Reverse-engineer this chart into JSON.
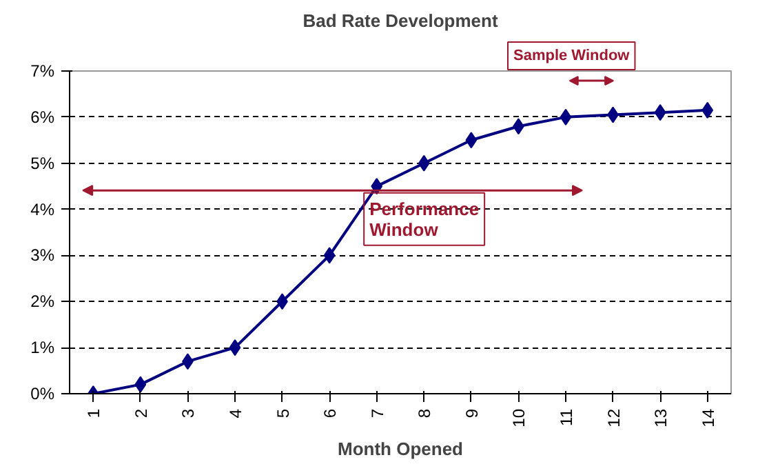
{
  "chart_data": {
    "type": "line",
    "title": "Bad Rate Development",
    "xlabel": "Month Opened",
    "categories": [
      "1",
      "2",
      "3",
      "4",
      "5",
      "6",
      "7",
      "8",
      "9",
      "10",
      "11",
      "12",
      "13",
      "14"
    ],
    "series": [
      {
        "color": "#000080",
        "values": [
          0,
          0.2,
          0.7,
          1.0,
          2.0,
          3.0,
          4.5,
          5.0,
          5.5,
          5.8,
          6.0,
          6.05,
          6.1,
          6.15
        ]
      }
    ],
    "ylim": [
      0,
      7
    ],
    "yticks": [
      {
        "value": 0,
        "label": "0%"
      },
      {
        "value": 1,
        "label": "1%"
      },
      {
        "value": 2,
        "label": "2%"
      },
      {
        "value": 3,
        "label": "3%"
      },
      {
        "value": 4,
        "label": "4%"
      },
      {
        "value": 5,
        "label": "5%"
      },
      {
        "value": 6,
        "label": "6%"
      },
      {
        "value": 7,
        "label": "7%"
      }
    ],
    "grid": "y",
    "marker": "diamond",
    "line_style": "solid",
    "annotations": [
      "Performance\nWindow",
      "Sample Window"
    ]
  }
}
